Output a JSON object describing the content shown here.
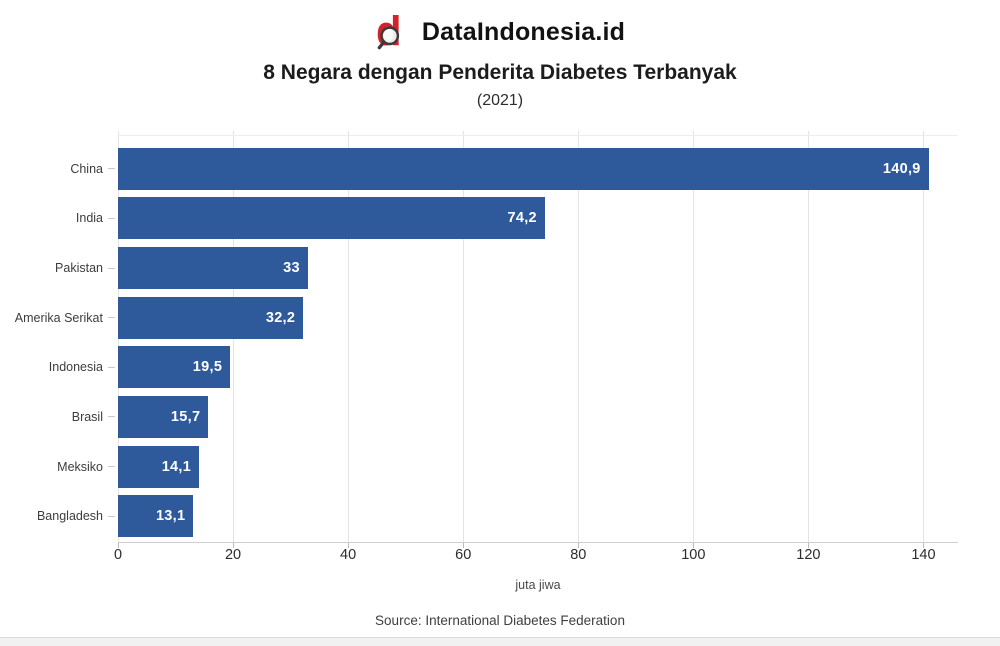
{
  "page": {
    "brand": "DataIndonesia.id",
    "title": "8 Negara dengan Penderita Diabetes Terbanyak",
    "subtitle": "(2021)",
    "source": "Source: International Diabetes Federation"
  },
  "colors": {
    "bar": "#2E5A9C",
    "logo_red": "#D2222B",
    "grid": "#E4E4E4",
    "axis": "#CFCFCF",
    "value_label": "#FFFFFF"
  },
  "chart_data": {
    "type": "bar",
    "orientation": "horizontal",
    "title": "8 Negara dengan Penderita Diabetes Terbanyak",
    "subtitle": "(2021)",
    "categories": [
      "China",
      "India",
      "Pakistan",
      "Amerika Serikat",
      "Indonesia",
      "Brasil",
      "Meksiko",
      "Bangladesh"
    ],
    "values": [
      140.9,
      74.2,
      33,
      32.2,
      19.5,
      15.7,
      14.1,
      13.1
    ],
    "value_labels": [
      "140,9",
      "74,2",
      "33",
      "32,2",
      "19,5",
      "15,7",
      "14,1",
      "13,1"
    ],
    "xlabel": "juta jiwa",
    "x_ticks": [
      0,
      20,
      40,
      60,
      80,
      100,
      120,
      140
    ],
    "x_tick_labels": [
      "0",
      "20",
      "40",
      "60",
      "80",
      "100",
      "120",
      "140"
    ],
    "xlim": [
      0,
      146
    ],
    "grid": true,
    "legend": false,
    "source": "Source: International Diabetes Federation"
  }
}
